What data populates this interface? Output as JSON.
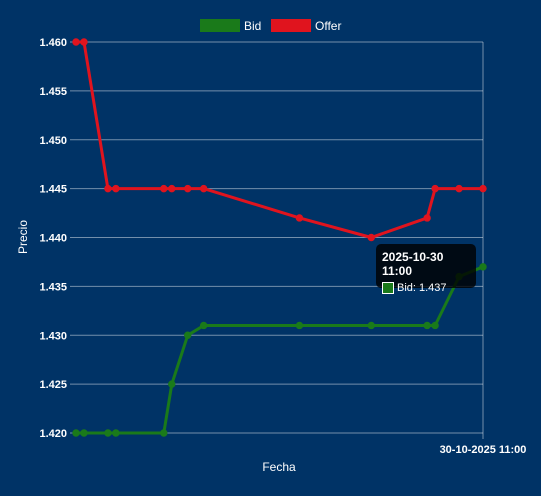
{
  "chart_data": {
    "type": "line",
    "xlabel": "Fecha",
    "ylabel": "Precio",
    "ylim": [
      1.42,
      1.46
    ],
    "yticks": [
      "1.460",
      "1.455",
      "1.450",
      "1.445",
      "1.440",
      "1.435",
      "1.430",
      "1.425",
      "1.420"
    ],
    "xtick_label": "30-10-2025 11:00",
    "grid": true,
    "legend_position": "top-center",
    "series": [
      {
        "name": "Bid",
        "color": "#1a7a1a",
        "x": [
          0,
          1,
          4,
          5,
          11,
          12,
          14,
          16,
          28,
          37,
          44,
          45,
          48,
          51
        ],
        "values": [
          1.42,
          1.42,
          1.42,
          1.42,
          1.42,
          1.425,
          1.43,
          1.431,
          1.431,
          1.431,
          1.431,
          1.431,
          1.436,
          1.437
        ]
      },
      {
        "name": "Offer",
        "color": "#e0141e",
        "x": [
          0,
          1,
          4,
          5,
          11,
          12,
          14,
          16,
          28,
          37,
          44,
          45,
          48,
          51
        ],
        "values": [
          1.46,
          1.46,
          1.445,
          1.445,
          1.445,
          1.445,
          1.445,
          1.445,
          1.442,
          1.44,
          1.442,
          1.445,
          1.445,
          1.445
        ]
      }
    ],
    "tooltip": {
      "title": "2025-10-30 11:00",
      "label": "Bid: 1.437"
    }
  }
}
